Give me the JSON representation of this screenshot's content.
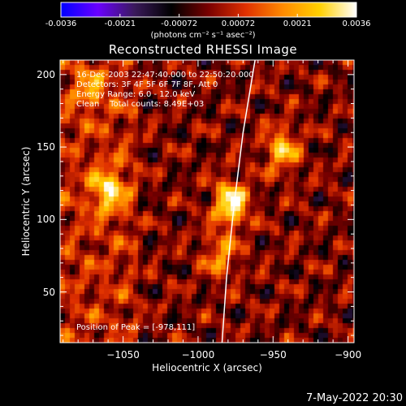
{
  "colorbar": {
    "ticks": [
      "-0.0036",
      "-0.0021",
      "-0.00072",
      "0.00072",
      "0.0021",
      "0.0036"
    ],
    "units_label": "(photons cm⁻² s⁻¹ asec⁻²)",
    "colors": [
      "#0000ff",
      "#6a00ff",
      "#3a1a5a",
      "#000000",
      "#7a0000",
      "#e03000",
      "#ff8a00",
      "#ffd000",
      "#ffffff"
    ]
  },
  "chart_data": {
    "type": "heatmap",
    "title": "Reconstructed RHESSI Image",
    "xlabel": "Heliocentric X (arcsec)",
    "ylabel": "Heliocentric Y (arcsec)",
    "xlim": [
      -1092,
      -896
    ],
    "ylim": [
      15,
      210
    ],
    "x_ticks": [
      -1050,
      -1000,
      -950,
      -900
    ],
    "y_ticks": [
      50,
      100,
      150,
      200
    ],
    "x_tick_labels": [
      "−1050",
      "−1000",
      "−950",
      "−900"
    ],
    "y_tick_labels": [
      "50",
      "100",
      "150",
      "200"
    ],
    "value_range": [
      -0.0036,
      0.0036
    ],
    "peak_position": [
      -978,
      111
    ],
    "bright_sources": [
      {
        "x": -978,
        "y": 111,
        "value": 0.0036
      },
      {
        "x": -1060,
        "y": 120,
        "value": 0.0026
      },
      {
        "x": -944,
        "y": 148,
        "value": 0.0025
      },
      {
        "x": -1072,
        "y": 190,
        "value": 0.0015
      },
      {
        "x": -985,
        "y": 75,
        "value": 0.0019
      }
    ],
    "limb_curve": [
      [
        -962,
        210
      ],
      [
        -970,
        160
      ],
      [
        -976,
        110
      ],
      [
        -981,
        60
      ],
      [
        -984,
        15
      ]
    ]
  },
  "info": {
    "line1": "16-Dec-2003 22:47:40.000 to 22:50:20.000",
    "line2": "Detectors: 3F 4F 5F 6F 7F 8F, Att 0",
    "line3": "Energy Range: 6.0 - 12.0 keV",
    "line4": "Clean    Total counts: 8.49E+03",
    "peak": "Position of Peak = [-978,111]"
  },
  "footer": {
    "timestamp": "7-May-2022 20:30"
  }
}
